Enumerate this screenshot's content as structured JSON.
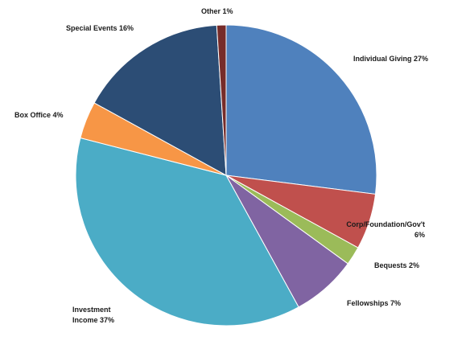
{
  "chart_data": {
    "type": "pie",
    "title": "",
    "slices": [
      {
        "label": "Individual Giving",
        "value": 27,
        "color": "#4F81BD",
        "label_lines": [
          "Individual Giving 27%"
        ]
      },
      {
        "label": "Corp/Foundation/Gov't",
        "value": 6,
        "color": "#C0504D",
        "label_lines": [
          "Corp/Foundation/Gov't",
          "6%"
        ]
      },
      {
        "label": "Bequests",
        "value": 2,
        "color": "#9BBB59",
        "label_lines": [
          "Bequests 2%"
        ]
      },
      {
        "label": "Fellowships",
        "value": 7,
        "color": "#8064A2",
        "label_lines": [
          "Fellowships 7%"
        ]
      },
      {
        "label": "Investment Income",
        "value": 37,
        "color": "#4BACC6",
        "label_lines": [
          "Investment",
          "Income 37%"
        ]
      },
      {
        "label": "Box Office",
        "value": 4,
        "color": "#F79646",
        "label_lines": [
          "Box Office 4%"
        ]
      },
      {
        "label": "Special Events",
        "value": 16,
        "color": "#2C4D75",
        "label_lines": [
          "Special Events 16%"
        ]
      },
      {
        "label": "Other",
        "value": 1,
        "color": "#772C2A",
        "label_lines": [
          "Other 1%"
        ]
      }
    ],
    "legend": "none",
    "start": "top, clockwise"
  }
}
